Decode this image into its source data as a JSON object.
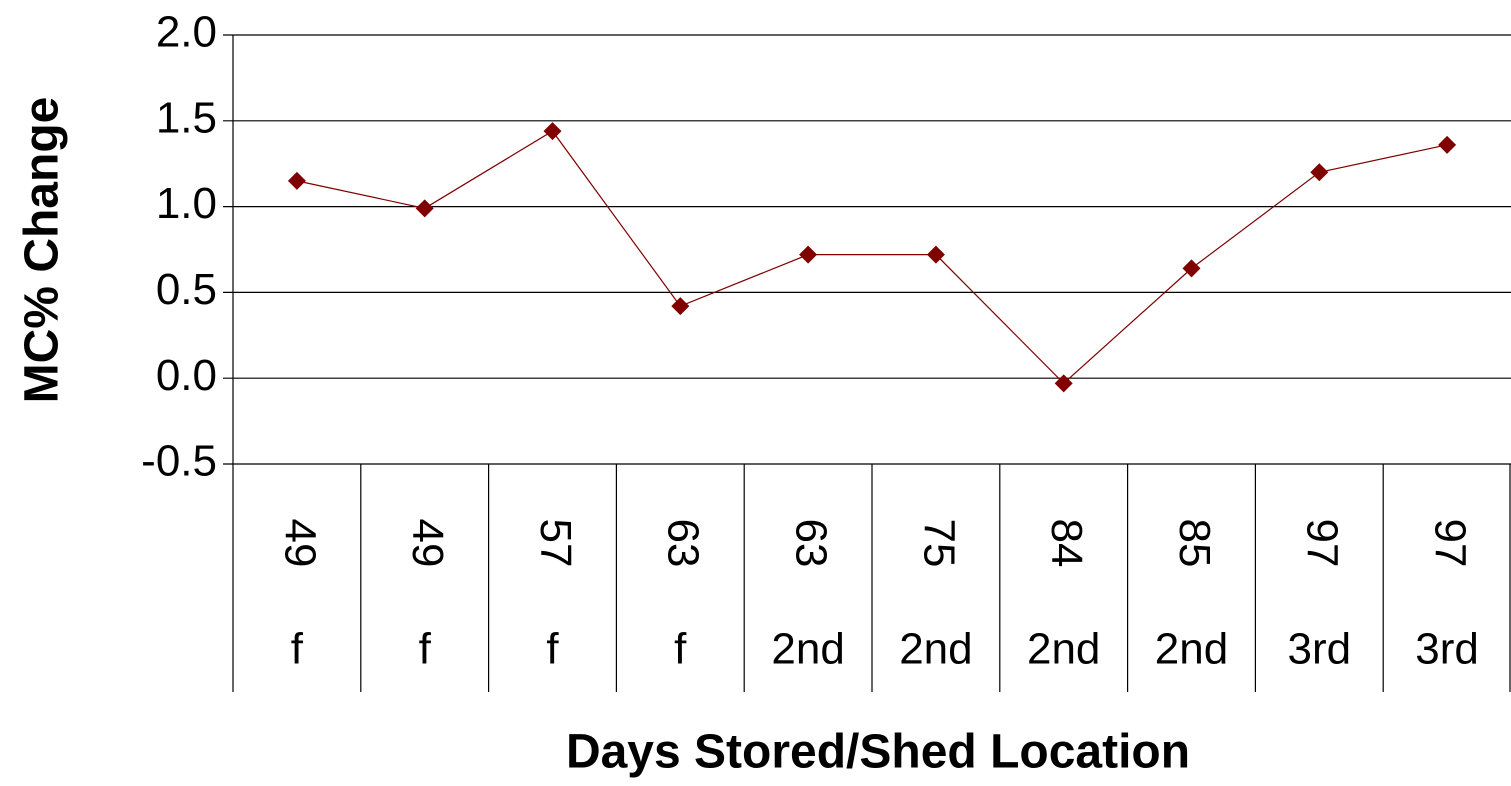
{
  "chart_data": {
    "type": "line",
    "x_label": "Days Stored/Shed Location",
    "y_label": "MC% Change",
    "categories": [
      "49",
      "49",
      "57",
      "63",
      "63",
      "75",
      "84",
      "85",
      "97",
      "97"
    ],
    "locations": [
      "f",
      "f",
      "f",
      "f",
      "2nd",
      "2nd",
      "2nd",
      "2nd",
      "3rd",
      "3rd"
    ],
    "series": [
      {
        "color": "#800000",
        "values": [
          1.15,
          0.99,
          1.44,
          0.42,
          0.72,
          0.72,
          -0.03,
          0.64,
          1.2,
          1.36
        ]
      }
    ],
    "ylim": [
      -0.5,
      2.0
    ],
    "yticks": [
      -0.5,
      {
        "value": 0,
        "label": "0.0"
      },
      0.5,
      {
        "value": 1,
        "label": "1.0"
      },
      1.5,
      {
        "value": 2,
        "label": "2.0"
      }
    ],
    "grid": true
  }
}
